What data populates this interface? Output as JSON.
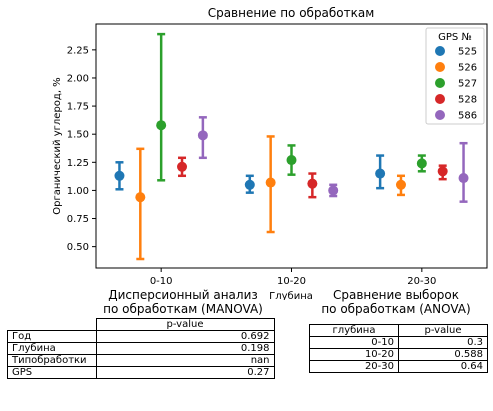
{
  "chart_data": {
    "type": "scatter",
    "title": "Сравнение по обработкам",
    "xlabel": "Глубина",
    "ylabel": "Органический углерод, %",
    "categories": [
      "0-10",
      "10-20",
      "20-30"
    ],
    "ylim": [
      0.31,
      2.48
    ],
    "yticks": [
      "0.50",
      "0.75",
      "1.00",
      "1.25",
      "1.50",
      "1.75",
      "2.00",
      "2.25"
    ],
    "grid": false,
    "legend": {
      "title": "GPS №",
      "placement": "top-right"
    },
    "series": [
      {
        "name": "525",
        "color": "#1f77b4",
        "points": [
          {
            "y": 1.13,
            "low": 1.01,
            "high": 1.25
          },
          {
            "y": 1.05,
            "low": 0.98,
            "high": 1.13
          },
          {
            "y": 1.15,
            "low": 1.02,
            "high": 1.31
          }
        ]
      },
      {
        "name": "526",
        "color": "#ff7f0e",
        "points": [
          {
            "y": 0.94,
            "low": 0.39,
            "high": 1.37
          },
          {
            "y": 1.07,
            "low": 0.63,
            "high": 1.48
          },
          {
            "y": 1.05,
            "low": 0.96,
            "high": 1.13
          }
        ]
      },
      {
        "name": "527",
        "color": "#2ca02c",
        "points": [
          {
            "y": 1.58,
            "low": 1.09,
            "high": 2.39
          },
          {
            "y": 1.27,
            "low": 1.14,
            "high": 1.4
          },
          {
            "y": 1.24,
            "low": 1.17,
            "high": 1.31
          }
        ]
      },
      {
        "name": "528",
        "color": "#d62728",
        "points": [
          {
            "y": 1.21,
            "low": 1.13,
            "high": 1.29
          },
          {
            "y": 1.06,
            "low": 0.94,
            "high": 1.15
          },
          {
            "y": 1.17,
            "low": 1.1,
            "high": 1.22
          }
        ]
      },
      {
        "name": "586",
        "color": "#9467bd",
        "points": [
          {
            "y": 1.49,
            "low": 1.29,
            "high": 1.65
          },
          {
            "y": 1.0,
            "low": 0.95,
            "high": 1.05
          },
          {
            "y": 1.11,
            "low": 0.9,
            "high": 1.42
          }
        ]
      }
    ]
  },
  "manova": {
    "title_line1": "Дисперсионный анализ",
    "title_line2": "по обработкам (MANOVA)",
    "column_header": "p-value",
    "rows": [
      {
        "label": "Год",
        "value": "0.692"
      },
      {
        "label": "Глубина",
        "value": "0.198"
      },
      {
        "label": "Типобработки",
        "value": "nan"
      },
      {
        "label": "GPS",
        "value": "0.27"
      }
    ]
  },
  "anova": {
    "title_line1": "Сравнение выборок",
    "title_line2": "по обработкам (ANOVA)",
    "headers": [
      "глубина",
      "p-value"
    ],
    "rows": [
      {
        "depth": "0-10",
        "value": "0.3"
      },
      {
        "depth": "10-20",
        "value": "0.588"
      },
      {
        "depth": "20-30",
        "value": "0.64"
      }
    ]
  }
}
